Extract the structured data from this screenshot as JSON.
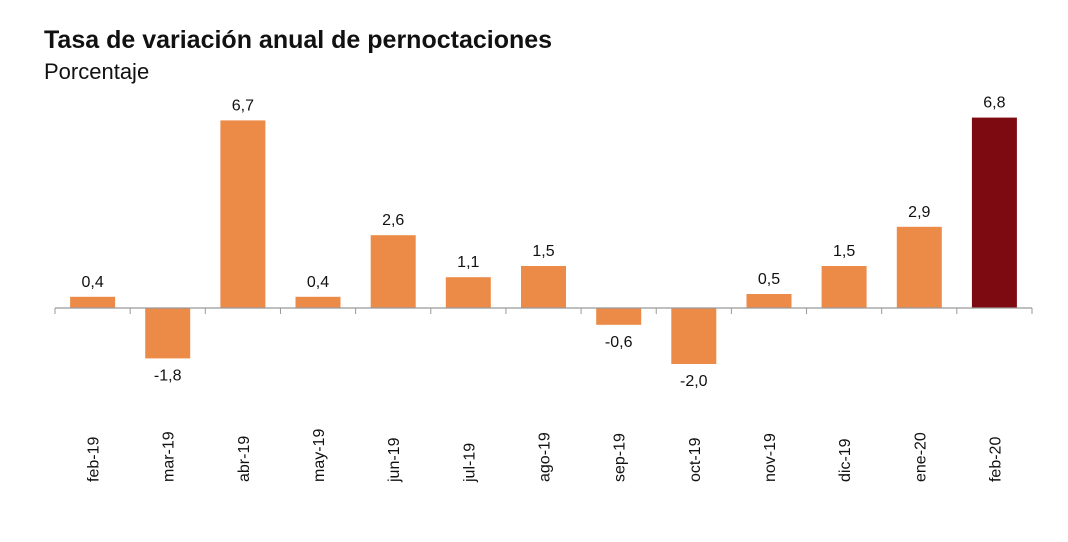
{
  "chart_data": {
    "type": "bar",
    "title": "Tasa de variación anual de pernoctaciones",
    "subtitle": "Porcentaje",
    "categories": [
      "feb-19",
      "mar-19",
      "abr-19",
      "may-19",
      "jun-19",
      "jul-19",
      "ago-19",
      "sep-19",
      "oct-19",
      "nov-19",
      "dic-19",
      "ene-20",
      "feb-20"
    ],
    "values": [
      0.4,
      -1.8,
      6.7,
      0.4,
      2.6,
      1.1,
      1.5,
      -0.6,
      -2.0,
      0.5,
      1.5,
      2.9,
      6.8
    ],
    "value_labels": [
      "0,4",
      "-1,8",
      "6,7",
      "0,4",
      "2,6",
      "1,1",
      "1,5",
      "-0,6",
      "-2,0",
      "0,5",
      "1,5",
      "2,9",
      "6,8"
    ],
    "colors": {
      "bar": "#ec8a48",
      "highlight": "#7d0a10",
      "axis": "#999999"
    },
    "highlight_index": 12,
    "grid": false,
    "legend": "none"
  }
}
